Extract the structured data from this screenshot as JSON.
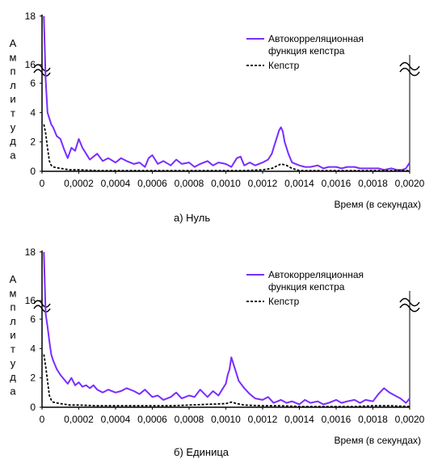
{
  "chart_data": [
    {
      "type": "line",
      "caption": "а) Нуль",
      "xlabel": "Время (в секундах)",
      "ylabel": "Амплитуда",
      "x_ticks": [
        "0",
        "0,0002",
        "0,0004",
        "0,0006",
        "0,0008",
        "0,0010",
        "0,0012",
        "0,0014",
        "0,0016",
        "0,0018",
        "0,0020"
      ],
      "y_ticks": [
        "0",
        "2",
        "4",
        "6",
        "16",
        "18"
      ],
      "xlim": [
        0,
        0.002
      ],
      "y_axis_break": "between 6 and 16",
      "legend_position": "top-right",
      "series": [
        {
          "name": "Автокорреляционная функция кепстра",
          "name_lines": [
            "Автокорреляционная",
            "функция кепстра"
          ],
          "color": "#7a2cff",
          "style": "solid",
          "x": [
            1e-05,
            2e-05,
            3e-05,
            4e-05,
            5e-05,
            6e-05,
            8e-05,
            0.0001,
            0.00012,
            0.00014,
            0.00016,
            0.00018,
            0.0002,
            0.00022,
            0.00024,
            0.00026,
            0.00028,
            0.0003,
            0.00033,
            0.00036,
            0.0004,
            0.00043,
            0.00046,
            0.0005,
            0.00053,
            0.00056,
            0.00058,
            0.0006,
            0.00063,
            0.00066,
            0.0007,
            0.00073,
            0.00076,
            0.0008,
            0.00083,
            0.00086,
            0.0009,
            0.00093,
            0.00096,
            0.001,
            0.00103,
            0.00106,
            0.00108,
            0.0011,
            0.00113,
            0.00116,
            0.0012,
            0.00123,
            0.00125,
            0.00127,
            0.00129,
            0.0013,
            0.00131,
            0.00132,
            0.00134,
            0.00136,
            0.00138,
            0.0014,
            0.00143,
            0.00146,
            0.0015,
            0.00153,
            0.00156,
            0.0016,
            0.00163,
            0.00166,
            0.0017,
            0.00173,
            0.00176,
            0.0018,
            0.00183,
            0.00186,
            0.0019,
            0.00193,
            0.00196,
            0.00198,
            0.002
          ],
          "y": [
            18,
            8,
            4,
            3.6,
            3.2,
            3,
            2.4,
            2.2,
            1.5,
            0.9,
            1.6,
            1.4,
            2.2,
            1.6,
            1.2,
            0.8,
            1.0,
            1.2,
            0.7,
            0.9,
            0.6,
            0.9,
            0.7,
            0.5,
            0.6,
            0.3,
            0.9,
            1.1,
            0.5,
            0.7,
            0.4,
            0.8,
            0.5,
            0.6,
            0.3,
            0.5,
            0.7,
            0.4,
            0.6,
            0.5,
            0.3,
            0.9,
            1.0,
            0.4,
            0.6,
            0.4,
            0.6,
            0.8,
            1.2,
            2.0,
            2.8,
            3.0,
            2.7,
            2.0,
            1.2,
            0.6,
            0.5,
            0.4,
            0.3,
            0.3,
            0.4,
            0.2,
            0.3,
            0.3,
            0.2,
            0.3,
            0.3,
            0.2,
            0.2,
            0.2,
            0.2,
            0.1,
            0.2,
            0.1,
            0.1,
            0.2,
            0.6
          ]
        },
        {
          "name": "Кепстр",
          "color": "#000000",
          "style": "dashed",
          "x": [
            1e-05,
            2e-05,
            3e-05,
            4e-05,
            5e-05,
            6e-05,
            8e-05,
            0.0001,
            0.00015,
            0.0002,
            0.0003,
            0.0004,
            0.0005,
            0.0006,
            0.0007,
            0.0008,
            0.0009,
            0.001,
            0.0011,
            0.0012,
            0.00125,
            0.0013,
            0.00133,
            0.00136,
            0.0014,
            0.0015,
            0.0016,
            0.0017,
            0.0018,
            0.0019,
            0.002
          ],
          "y": [
            3.2,
            2.6,
            1.6,
            0.7,
            0.4,
            0.3,
            0.25,
            0.2,
            0.1,
            0.1,
            0.05,
            0.05,
            0.05,
            0.05,
            0.05,
            0.05,
            0.05,
            0.05,
            0.05,
            0.1,
            0.2,
            0.5,
            0.4,
            0.2,
            0.05,
            0.05,
            0.05,
            0.05,
            0.05,
            0.05,
            0.05
          ]
        }
      ]
    },
    {
      "type": "line",
      "caption": "б) Единица",
      "xlabel": "Время (в секундах)",
      "ylabel": "Амплитуда",
      "x_ticks": [
        "0",
        "0,0002",
        "0,0004",
        "0,0006",
        "0,0008",
        "0,0010",
        "0,0012",
        "0,0014",
        "0,0016",
        "0,0018",
        "0,0020"
      ],
      "y_ticks": [
        "0",
        "2",
        "4",
        "6",
        "16",
        "18"
      ],
      "xlim": [
        0,
        0.002
      ],
      "y_axis_break": "between 6 and 16",
      "legend_position": "top-right",
      "series": [
        {
          "name": "Автокорреляционная функция кепстра",
          "name_lines": [
            "Автокорреляционная",
            "функция кепстра"
          ],
          "color": "#7a2cff",
          "style": "solid",
          "x": [
            1e-05,
            2e-05,
            3e-05,
            4e-05,
            5e-05,
            6e-05,
            8e-05,
            0.0001,
            0.00012,
            0.00014,
            0.00016,
            0.00018,
            0.0002,
            0.00022,
            0.00024,
            0.00026,
            0.00028,
            0.0003,
            0.00033,
            0.00036,
            0.0004,
            0.00043,
            0.00046,
            0.0005,
            0.00053,
            0.00056,
            0.0006,
            0.00063,
            0.00066,
            0.0007,
            0.00073,
            0.00076,
            0.0008,
            0.00083,
            0.00086,
            0.0009,
            0.00093,
            0.00096,
            0.00098,
            0.001,
            0.00101,
            0.00102,
            0.00103,
            0.00105,
            0.00107,
            0.0011,
            0.00113,
            0.00116,
            0.0012,
            0.00123,
            0.00126,
            0.0013,
            0.00133,
            0.00136,
            0.0014,
            0.00143,
            0.00146,
            0.0015,
            0.00153,
            0.00156,
            0.0016,
            0.00163,
            0.00166,
            0.0017,
            0.00173,
            0.00176,
            0.0018,
            0.00183,
            0.00186,
            0.00189,
            0.00192,
            0.00195,
            0.00198,
            0.002
          ],
          "y": [
            18,
            9,
            5.5,
            4.5,
            3.6,
            3.2,
            2.6,
            2.2,
            1.9,
            1.6,
            2.0,
            1.5,
            1.7,
            1.4,
            1.5,
            1.3,
            1.5,
            1.2,
            1.0,
            1.2,
            1.0,
            1.1,
            1.3,
            1.1,
            0.9,
            1.2,
            0.7,
            0.8,
            0.5,
            0.7,
            1.0,
            0.6,
            0.8,
            0.7,
            1.2,
            0.7,
            1.1,
            0.8,
            1.2,
            1.6,
            2.2,
            2.6,
            3.4,
            2.6,
            1.8,
            1.3,
            0.9,
            0.6,
            0.5,
            0.7,
            0.3,
            0.5,
            0.3,
            0.4,
            0.2,
            0.5,
            0.3,
            0.4,
            0.2,
            0.3,
            0.5,
            0.3,
            0.4,
            0.5,
            0.3,
            0.5,
            0.4,
            0.9,
            1.3,
            1.0,
            0.8,
            0.6,
            0.3,
            0.6
          ]
        },
        {
          "name": "Кепстр",
          "color": "#000000",
          "style": "dashed",
          "x": [
            1e-05,
            2e-05,
            3e-05,
            4e-05,
            5e-05,
            6e-05,
            8e-05,
            0.0001,
            0.00015,
            0.0002,
            0.0003,
            0.0004,
            0.0005,
            0.0006,
            0.0007,
            0.0008,
            0.0009,
            0.001,
            0.00103,
            0.00106,
            0.0011,
            0.0012,
            0.0013,
            0.0014,
            0.0015,
            0.0016,
            0.0017,
            0.0018,
            0.0019,
            0.002
          ],
          "y": [
            3.6,
            2.8,
            1.8,
            0.8,
            0.5,
            0.35,
            0.3,
            0.25,
            0.15,
            0.15,
            0.1,
            0.1,
            0.1,
            0.1,
            0.1,
            0.15,
            0.2,
            0.25,
            0.35,
            0.25,
            0.15,
            0.1,
            0.1,
            0.05,
            0.05,
            0.05,
            0.05,
            0.1,
            0.1,
            0.05
          ]
        }
      ]
    }
  ]
}
